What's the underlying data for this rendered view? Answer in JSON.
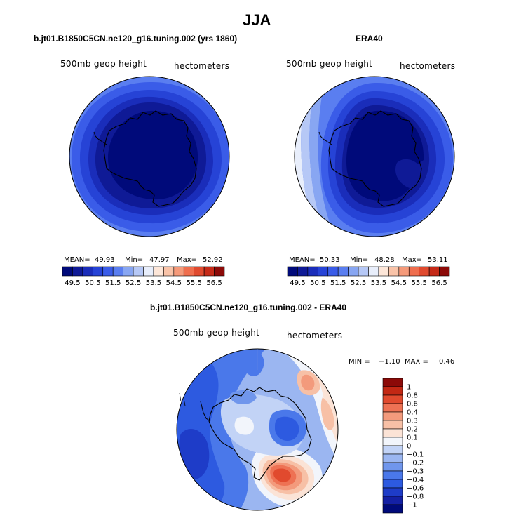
{
  "header": {
    "title": "JJA"
  },
  "colors": {
    "absolute": [
      "#000a7a",
      "#0f1a96",
      "#1a2dba",
      "#2643d6",
      "#3a5ce8",
      "#5a7ef0",
      "#88a6f2",
      "#b6c8f6",
      "#e8eefb",
      "#fde6d8",
      "#f9c3a8",
      "#f59a7a",
      "#ef6e4e",
      "#e04a2f",
      "#c52a18",
      "#8c0a08"
    ],
    "diff": [
      "#000a7a",
      "#1420a4",
      "#1e3cc8",
      "#2d5ae0",
      "#4a78ea",
      "#7096ec",
      "#9bb6f1",
      "#c2d3f6",
      "#f2f5fb",
      "#fbe3d6",
      "#f7c0a6",
      "#f39a7c",
      "#ee7254",
      "#e14a2e",
      "#c32814",
      "#8c0a08"
    ]
  },
  "panels": [
    {
      "title": "b.jt01.B1850C5CN.ne120_g16.tuning.002 (yrs 1860)",
      "variable": "500mb geop height",
      "units": "hectometers",
      "mean_label": "MEAN=",
      "mean": "49.93",
      "min_label": "Min=",
      "min": "47.97",
      "max_label": "Max=",
      "max": "52.92"
    },
    {
      "title": "ERA40",
      "variable": "500mb geop height",
      "units": "hectometers",
      "mean_label": "MEAN=",
      "mean": "50.33",
      "min_label": "Min=",
      "min": "48.28",
      "max_label": "Max=",
      "max": "53.11"
    },
    {
      "title": "b.jt01.B1850C5CN.ne120_g16.tuning.002 - ERA40",
      "variable": "500mb geop height",
      "units": "hectometers",
      "min_label": "MIN =",
      "min": "−1.10",
      "max_label": "MAX =",
      "max": "0.46"
    }
  ],
  "chart_data": [
    {
      "type": "heatmap",
      "title": "b.jt01.B1850C5CN.ne120_g16.tuning.002 (yrs 1860)",
      "projection": "south polar stereographic",
      "field": "500mb geop height (hectometers)",
      "mean": 49.93,
      "min": 47.97,
      "max": 52.92,
      "colorbar_labels": [
        "49.5",
        "50.5",
        "51.5",
        "52.5",
        "53.5",
        "54.5",
        "55.5",
        "56.5"
      ],
      "colorbar_levels": [
        49,
        49.5,
        50,
        50.5,
        51,
        51.5,
        52,
        52.5,
        53,
        53.5,
        54,
        54.5,
        55,
        55.5,
        56,
        56.5
      ]
    },
    {
      "type": "heatmap",
      "title": "ERA40",
      "projection": "south polar stereographic",
      "field": "500mb geop height (hectometers)",
      "mean": 50.33,
      "min": 48.28,
      "max": 53.11,
      "colorbar_labels": [
        "49.5",
        "50.5",
        "51.5",
        "52.5",
        "53.5",
        "54.5",
        "55.5",
        "56.5"
      ],
      "colorbar_levels": [
        49,
        49.5,
        50,
        50.5,
        51,
        51.5,
        52,
        52.5,
        53,
        53.5,
        54,
        54.5,
        55,
        55.5,
        56,
        56.5
      ]
    },
    {
      "type": "heatmap",
      "title": "b.jt01.B1850C5CN.ne120_g16.tuning.002 - ERA40",
      "projection": "south polar stereographic",
      "field": "500mb geop height difference (hectometers)",
      "min": -1.1,
      "max": 0.46,
      "colorbar_labels": [
        "1",
        "0.8",
        "0.6",
        "0.4",
        "0.3",
        "0.2",
        "0.1",
        "0",
        "−0.1",
        "−0.2",
        "−0.3",
        "−0.4",
        "−0.6",
        "−0.8",
        "−1"
      ]
    }
  ]
}
